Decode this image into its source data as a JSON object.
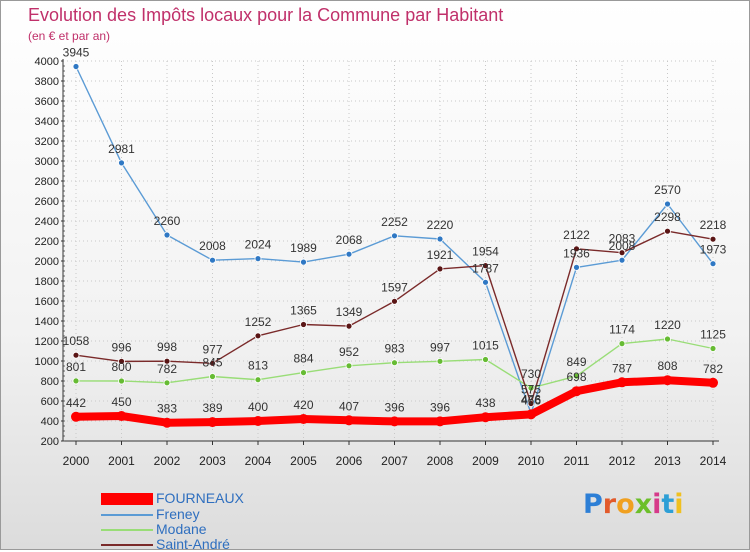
{
  "title": "Evolution des Impôts locaux pour la Commune par Habitant",
  "subtitle": "(en € et par an)",
  "chart_data": {
    "type": "line",
    "title": "Evolution des Impôts locaux pour la Commune par Habitant",
    "ylabel": "(en € et par an)",
    "xlabel": "",
    "ylim": [
      200,
      4000
    ],
    "yticks": [
      "200",
      "400",
      "600",
      "800",
      "1000",
      "1200",
      "1400",
      "1600",
      "1800",
      "2000",
      "2200",
      "2400",
      "2600",
      "2800",
      "3000",
      "3200",
      "3400",
      "3600",
      "3800",
      "4000"
    ],
    "categories": [
      "2000",
      "2001",
      "2002",
      "2003",
      "2004",
      "2005",
      "2006",
      "2007",
      "2008",
      "2009",
      "2010",
      "2011",
      "2012",
      "2013",
      "2014"
    ],
    "series": [
      {
        "name": "FOURNEAUX",
        "color": "#ff0000",
        "marker": "#ff0000",
        "values": [
          442,
          450,
          383,
          389,
          400,
          420,
          407,
          396,
          396,
          438,
          466,
          698,
          787,
          808,
          782
        ],
        "labels": [
          "442",
          "450",
          "383",
          "389",
          "400",
          "420",
          "407",
          "396",
          "396",
          "438",
          "466",
          "698",
          "787",
          "808",
          "782"
        ]
      },
      {
        "name": "Freney",
        "color": "#5b9bd5",
        "marker": "#2f78c4",
        "values": [
          3945,
          2981,
          2260,
          2008,
          2024,
          1989,
          2068,
          2252,
          2220,
          1787,
          476,
          1936,
          2008,
          2570,
          1973
        ],
        "labels": [
          "3945",
          "2981",
          "2260",
          "2008",
          "2024",
          "1989",
          "2068",
          "2252",
          "2220",
          "1787",
          "476",
          "1936",
          "2008",
          "2570",
          "1973"
        ]
      },
      {
        "name": "Modane",
        "color": "#99dd77",
        "marker": "#66bb33",
        "values": [
          801,
          800,
          782,
          845,
          813,
          884,
          952,
          983,
          997,
          1015,
          730,
          849,
          1174,
          1220,
          1125
        ],
        "labels": [
          "801",
          "800",
          "782",
          "845",
          "813",
          "884",
          "952",
          "983",
          "997",
          "1015",
          "730",
          "849",
          "1174",
          "1220",
          "1125"
        ]
      },
      {
        "name": "Saint-André",
        "color": "#7a2a2a",
        "marker": "#5a1515",
        "values": [
          1058,
          996,
          998,
          977,
          1252,
          1365,
          1349,
          1597,
          1921,
          1954,
          575,
          2122,
          2083,
          2298,
          2218
        ],
        "labels": [
          "1058",
          "996",
          "998",
          "977",
          "1252",
          "1365",
          "1349",
          "1597",
          "1921",
          "1954",
          "575",
          "2122",
          "2083",
          "2298",
          "2218"
        ]
      }
    ]
  },
  "logo": {
    "text": "Proxiti"
  }
}
